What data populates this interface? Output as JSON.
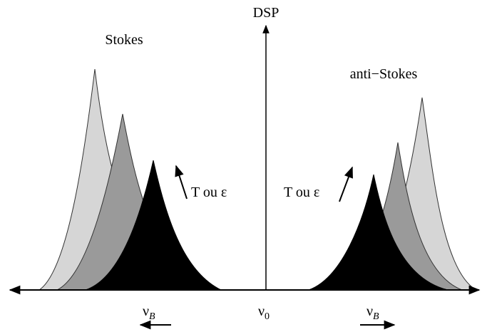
{
  "axes": {
    "y_label": "DSP",
    "origin": {
      "symbol": "ν",
      "subscript": "0"
    }
  },
  "groups": [
    {
      "label": "Stokes",
      "shift_label": "T ou ε",
      "shift": {
        "symbol": "ν",
        "subscript": "B"
      }
    },
    {
      "label": "anti−Stokes",
      "shift_label": "T ou ε",
      "shift": {
        "symbol": "ν",
        "subscript": "B"
      }
    }
  ]
}
